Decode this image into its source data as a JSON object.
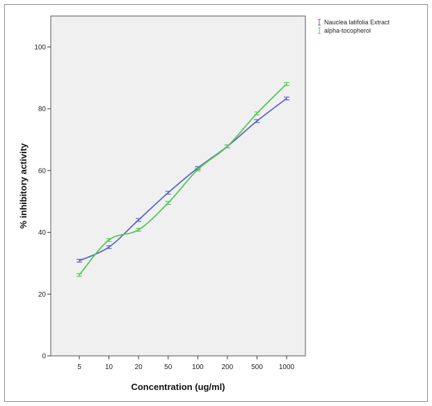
{
  "chart_data": {
    "type": "line",
    "title": "",
    "xlabel": "Concentration (ug/ml)",
    "ylabel": "% inhibitory activity",
    "categories": [
      "5",
      "10",
      "20",
      "50",
      "100",
      "200",
      "500",
      "1000"
    ],
    "ylim": [
      0,
      110
    ],
    "yticks": [
      0,
      20,
      40,
      60,
      80,
      100
    ],
    "grid": false,
    "legend_position": "top-right",
    "series": [
      {
        "name": "Nauclea latifolia Extract",
        "color": "#5b67c4",
        "values": [
          30.8,
          35.2,
          44.0,
          52.8,
          60.8,
          67.8,
          76.0,
          83.3
        ]
      },
      {
        "name": "alpha-tocopherol",
        "color": "#54c85a",
        "values": [
          26.2,
          37.5,
          40.8,
          49.5,
          60.3,
          67.8,
          78.5,
          88.0
        ]
      }
    ]
  }
}
